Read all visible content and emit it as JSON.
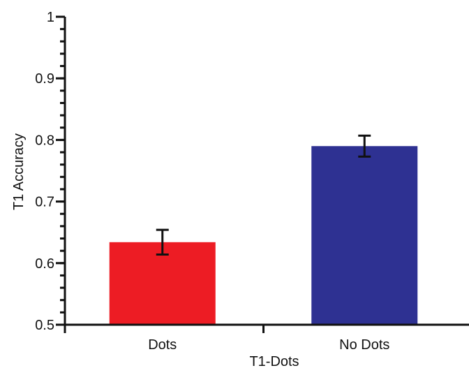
{
  "chart_data": {
    "type": "bar",
    "xlabel": "T1-Dots",
    "ylabel": "T1 Accuracy",
    "ylim": [
      0.5,
      1.0
    ],
    "yticks": [
      {
        "value": 0.5,
        "label": "0.5"
      },
      {
        "value": 0.6,
        "label": "0.6"
      },
      {
        "value": 0.7,
        "label": "0.7"
      },
      {
        "value": 0.8,
        "label": "0.8"
      },
      {
        "value": 0.9,
        "label": "0.9"
      },
      {
        "value": 1.0,
        "label": "1"
      }
    ],
    "minor_tick_step": 0.02,
    "categories": [
      "Dots",
      "No Dots"
    ],
    "values": [
      0.634,
      0.79
    ],
    "error_bars": [
      {
        "low": 0.614,
        "high": 0.654
      },
      {
        "low": 0.773,
        "high": 0.807
      }
    ],
    "colors": [
      "#ed1c24",
      "#2e3192"
    ],
    "grid": false
  }
}
